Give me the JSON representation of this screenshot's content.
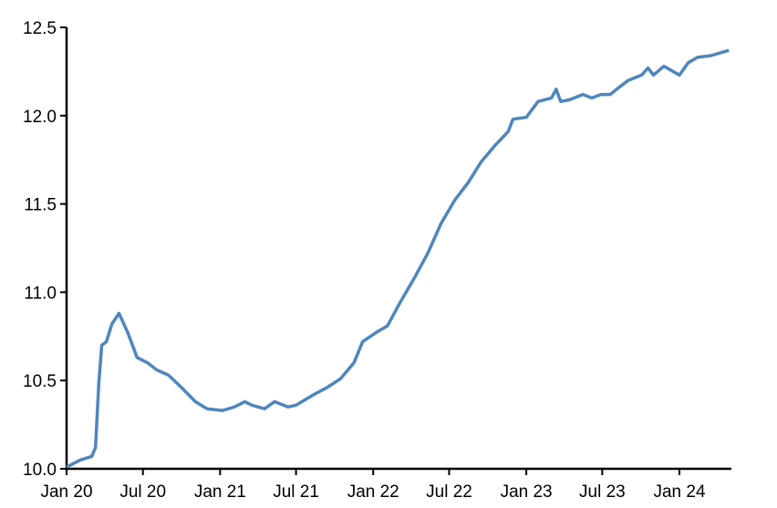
{
  "chart_data": {
    "type": "line",
    "title": "",
    "xlabel": "",
    "ylabel": "",
    "ylim": [
      10.0,
      12.5
    ],
    "xlim": [
      "2020-01-01",
      "2024-04-30"
    ],
    "grid": false,
    "line_color": "#4F86BE",
    "y_ticks": [
      "10.0",
      "10.5",
      "11.0",
      "11.5",
      "12.0",
      "12.5"
    ],
    "x_ticks": [
      {
        "date": "2020-01-01",
        "label": "Jan 20"
      },
      {
        "date": "2020-07-01",
        "label": "Jul 20"
      },
      {
        "date": "2021-01-01",
        "label": "Jan 21"
      },
      {
        "date": "2021-07-01",
        "label": "Jul 21"
      },
      {
        "date": "2022-01-01",
        "label": "Jan 22"
      },
      {
        "date": "2022-07-01",
        "label": "Jul 22"
      },
      {
        "date": "2023-01-01",
        "label": "Jan 23"
      },
      {
        "date": "2023-07-01",
        "label": "Jul 23"
      },
      {
        "date": "2024-01-01",
        "label": "Jan 24"
      }
    ],
    "series": [
      {
        "x": [
          "2020-01-01",
          "2020-02-03",
          "2020-03-01",
          "2020-03-10",
          "2020-03-18",
          "2020-03-25",
          "2020-04-05",
          "2020-04-18",
          "2020-05-05",
          "2020-05-26",
          "2020-06-17",
          "2020-07-12",
          "2020-08-03",
          "2020-08-31",
          "2020-10-01",
          "2020-11-03",
          "2020-12-01",
          "2021-01-07",
          "2021-02-04",
          "2021-03-01",
          "2021-03-18",
          "2021-04-17",
          "2021-05-11",
          "2021-06-12",
          "2021-07-01",
          "2021-08-12",
          "2021-09-13",
          "2021-10-15",
          "2021-11-16",
          "2021-12-07",
          "2022-01-07",
          "2022-02-04",
          "2022-03-08",
          "2022-04-09",
          "2022-05-11",
          "2022-06-12",
          "2022-07-14",
          "2022-08-15",
          "2022-09-16",
          "2022-10-18",
          "2022-11-19",
          "2022-11-30",
          "2023-01-01",
          "2023-01-29",
          "2023-03-02",
          "2023-03-13",
          "2023-03-24",
          "2023-04-14",
          "2023-05-16",
          "2023-06-06",
          "2023-06-28",
          "2023-07-20",
          "2023-08-10",
          "2023-09-01",
          "2023-10-03",
          "2023-10-18",
          "2023-10-31",
          "2023-11-25",
          "2024-01-01",
          "2024-01-22",
          "2024-02-13",
          "2024-03-16",
          "2024-04-28"
        ],
        "y": [
          10.01,
          10.05,
          10.07,
          10.12,
          10.49,
          10.7,
          10.72,
          10.82,
          10.88,
          10.77,
          10.63,
          10.6,
          10.56,
          10.53,
          10.46,
          10.38,
          10.34,
          10.33,
          10.35,
          10.38,
          10.36,
          10.34,
          10.38,
          10.35,
          10.36,
          10.42,
          10.46,
          10.51,
          10.6,
          10.72,
          10.77,
          10.81,
          10.95,
          11.08,
          11.22,
          11.39,
          11.52,
          11.62,
          11.74,
          11.83,
          11.91,
          11.98,
          11.99,
          12.08,
          12.1,
          12.15,
          12.08,
          12.09,
          12.12,
          12.1,
          12.12,
          12.12,
          12.16,
          12.2,
          12.23,
          12.27,
          12.23,
          12.28,
          12.23,
          12.3,
          12.33,
          12.34,
          12.37
        ]
      }
    ]
  }
}
